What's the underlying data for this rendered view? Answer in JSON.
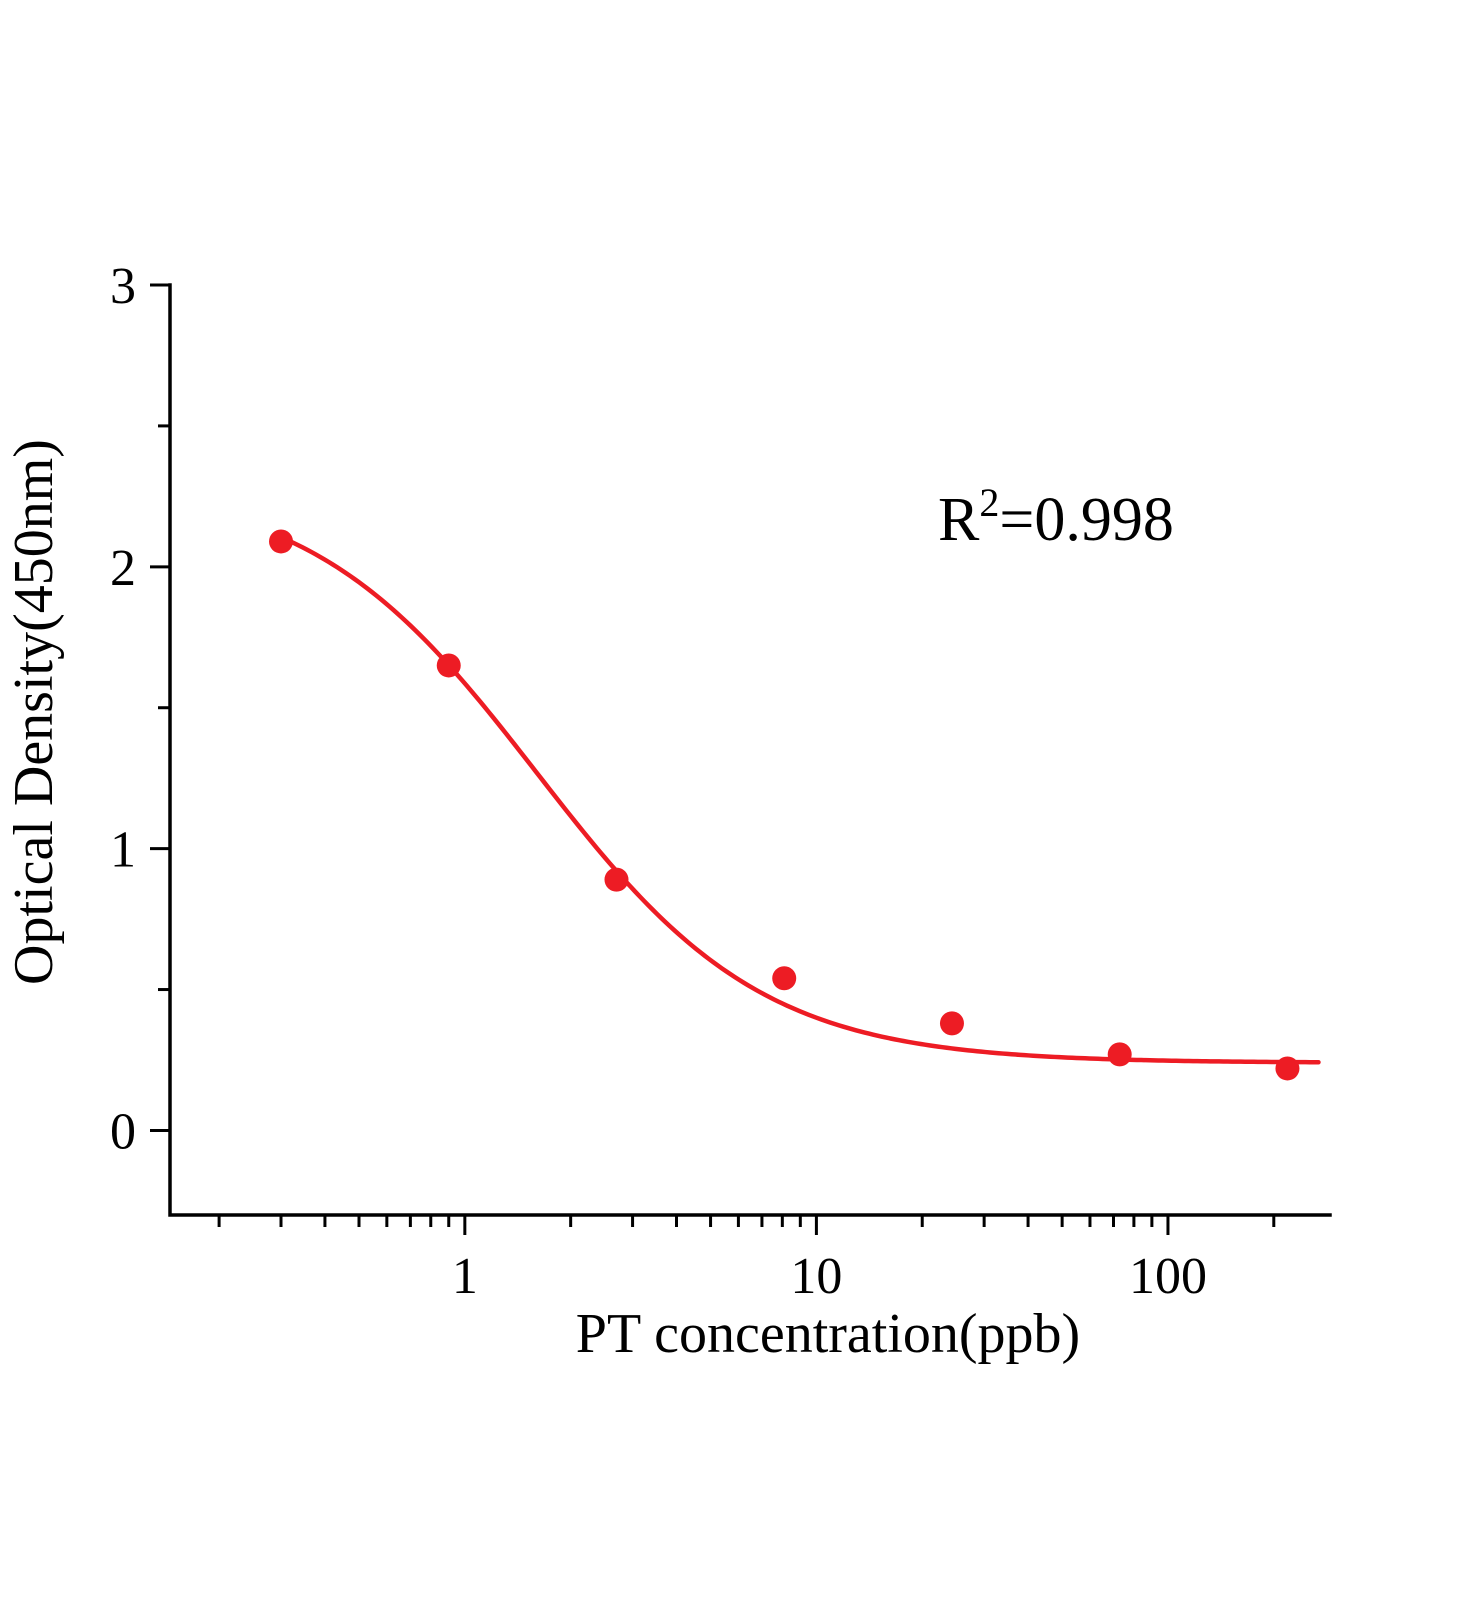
{
  "chart_data": {
    "type": "scatter",
    "title": "",
    "xlabel": "PT concentration(ppb)",
    "ylabel": "Optical Density(450nm)",
    "x_scale": "log",
    "x_range": [
      0.145,
      289
    ],
    "y_range": [
      -0.3,
      3
    ],
    "x_ticks": {
      "values": [
        1,
        10,
        100
      ],
      "labels": [
        "1",
        "10",
        "100"
      ]
    },
    "y_ticks": {
      "values": [
        0,
        1,
        2,
        3
      ],
      "labels": [
        "0",
        "1",
        "2",
        "3"
      ]
    },
    "y_minor_ticks": [
      0.5,
      1.5,
      2.5
    ],
    "x_minor_decades": [
      -1,
      0,
      1,
      2
    ],
    "grid": false,
    "legend": "none",
    "points": {
      "x": [
        0.3,
        0.9,
        2.7,
        8.1,
        24.3,
        72.9,
        218.7
      ],
      "y": [
        2.09,
        1.65,
        0.89,
        0.54,
        0.38,
        0.27,
        0.22
      ]
    },
    "fit": {
      "model": "4PL",
      "a": 2.3,
      "b": 1.35,
      "c": 1.6,
      "d": 0.24,
      "curve_x_start": 0.3,
      "curve_x_end": 268,
      "r_squared": "0.998"
    },
    "annotation": {
      "base": "R",
      "sup": "2",
      "rest": "=0.998"
    },
    "colors": {
      "series": "#ed1c24",
      "axis": "#000000",
      "background": "#ffffff"
    }
  }
}
